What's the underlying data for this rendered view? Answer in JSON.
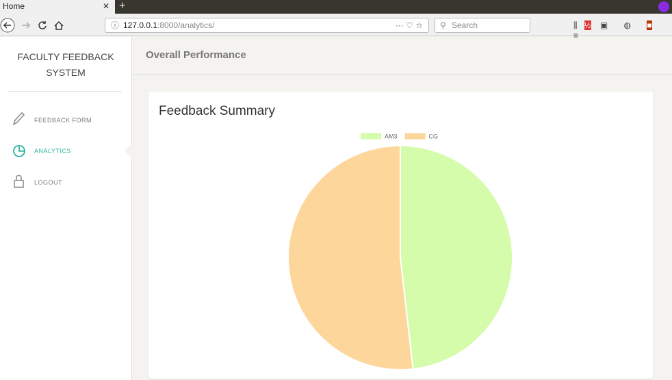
{
  "browser": {
    "tab_title": "Home",
    "url_host": "127.0.0.1",
    "url_path": ":8000/analytics/",
    "search_placeholder": "Search"
  },
  "sidebar": {
    "title": "FACULTY FEEDBACK SYSTEM",
    "nav": [
      "FEEDBACK FORM",
      "ANALYTICS",
      "LOGOUT"
    ]
  },
  "header": {
    "title": "Overall Performance"
  },
  "card": {
    "title": "Feedback Summary"
  },
  "chart_data": {
    "type": "pie",
    "categories": [
      "AM3",
      "CG"
    ],
    "values": [
      48.2,
      51.8
    ],
    "colors": [
      "#d5fcaa",
      "#fdd69b"
    ]
  }
}
